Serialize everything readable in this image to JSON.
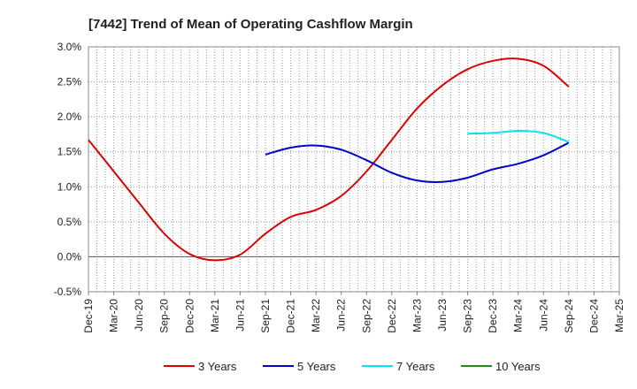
{
  "chart_data": {
    "type": "line",
    "title": "[7442]  Trend of Mean of Operating Cashflow Margin",
    "xlabel": "",
    "ylabel": "",
    "ylim": [
      -0.5,
      3.0
    ],
    "y_unit": "%",
    "y_ticks": [
      "3.0%",
      "2.5%",
      "2.0%",
      "1.5%",
      "1.0%",
      "0.5%",
      "0.0%",
      "-0.5%"
    ],
    "y_tick_values": [
      3.0,
      2.5,
      2.0,
      1.5,
      1.0,
      0.5,
      0.0,
      -0.5
    ],
    "x_categories": [
      "Dec-19",
      "Mar-20",
      "Jun-20",
      "Sep-20",
      "Dec-20",
      "Mar-21",
      "Jun-21",
      "Sep-21",
      "Dec-21",
      "Mar-22",
      "Jun-22",
      "Sep-22",
      "Dec-22",
      "Mar-23",
      "Jun-23",
      "Sep-23",
      "Dec-23",
      "Mar-24",
      "Jun-24",
      "Sep-24",
      "Dec-24",
      "Mar-25"
    ],
    "grid": true,
    "legend_position": "bottom",
    "series": [
      {
        "name": "3 Years",
        "color": "#dd0000",
        "values": [
          1.67,
          1.22,
          0.77,
          0.33,
          0.04,
          -0.05,
          0.03,
          0.33,
          0.57,
          0.67,
          0.87,
          1.22,
          1.67,
          2.12,
          2.45,
          2.68,
          2.8,
          2.83,
          2.73,
          2.43,
          null,
          null
        ]
      },
      {
        "name": "5 Years",
        "color": "#0000cc",
        "values": [
          null,
          null,
          null,
          null,
          null,
          null,
          null,
          1.46,
          1.56,
          1.59,
          1.53,
          1.38,
          1.2,
          1.09,
          1.07,
          1.13,
          1.25,
          1.33,
          1.45,
          1.63,
          null,
          null
        ]
      },
      {
        "name": "7 Years",
        "color": "#00e5ee",
        "values": [
          null,
          null,
          null,
          null,
          null,
          null,
          null,
          null,
          null,
          null,
          null,
          null,
          null,
          null,
          null,
          1.76,
          1.77,
          1.8,
          1.77,
          1.64,
          null,
          null
        ]
      },
      {
        "name": "10 Years",
        "color": "#228b22",
        "values": [
          null,
          null,
          null,
          null,
          null,
          null,
          null,
          null,
          null,
          null,
          null,
          null,
          null,
          null,
          null,
          null,
          null,
          null,
          null,
          null,
          null,
          null
        ]
      }
    ]
  }
}
